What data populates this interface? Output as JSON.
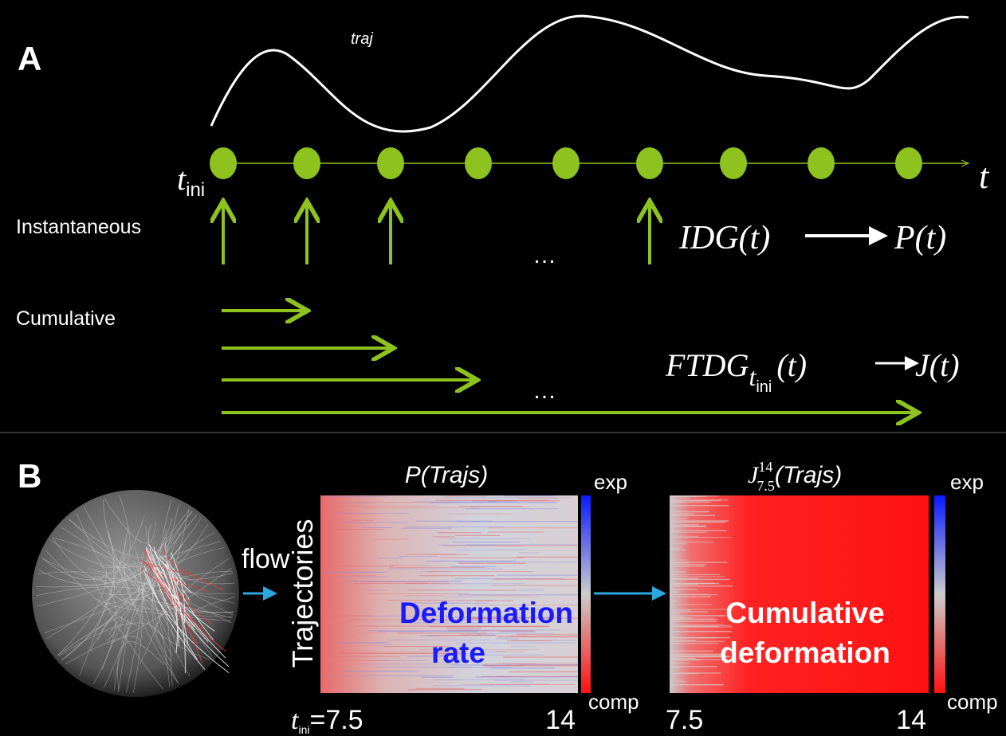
{
  "panel_a": {
    "label": "A",
    "traj_label": "traj",
    "t_ini": {
      "symbol": "t",
      "subscript": "ini"
    },
    "time_axis_label": "t",
    "instantaneous_label": "Instantaneous",
    "cumulative_label": "Cumulative",
    "ellipsis_instantaneous": "…",
    "ellipsis_cumulative": "…",
    "idg_formula": {
      "operator": "IDG(t)",
      "result": "P(t)"
    },
    "ftdg_formula": {
      "operator": "FTDG",
      "subscript_symbol": "t",
      "subscript_index": "ini",
      "argument": "(t)",
      "result": "J(t)"
    }
  },
  "panel_b": {
    "label": "B",
    "flow_label": "flow",
    "y_axis_label": "Trajectories",
    "left_map": {
      "title": "P(Trajs)",
      "overlay": [
        "Deformation",
        "rate"
      ],
      "x_start": {
        "symbol": "t",
        "subscript": "ini",
        "value_text": "=7.5"
      },
      "x_end": "14",
      "colorbar_top": "exp",
      "colorbar_bottom": "comp"
    },
    "right_map": {
      "title": {
        "symbol": "J",
        "superscript": "14",
        "subscript": "7.5",
        "argument": "(Trajs)"
      },
      "overlay": [
        "Cumulative",
        "deformation"
      ],
      "x_start": "7.5",
      "x_end": "14",
      "colorbar_top": "exp",
      "colorbar_bottom": "comp"
    }
  }
}
